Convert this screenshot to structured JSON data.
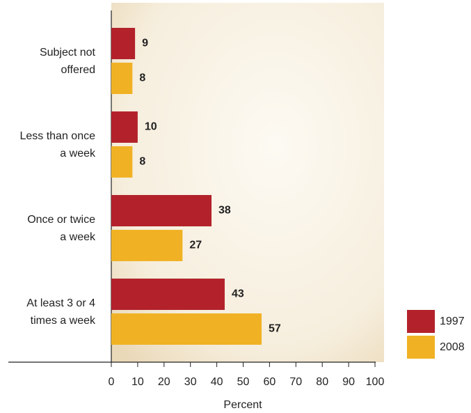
{
  "chart_data": {
    "type": "hbar",
    "categories": [
      "Subject not\noffered",
      "Less than once\na week",
      "Once or twice\na week",
      "At least 3 or 4\ntimes a week"
    ],
    "series": [
      {
        "name": "1997",
        "color": "#b3222b",
        "values": [
          9,
          10,
          38,
          43
        ]
      },
      {
        "name": "2008",
        "color": "#f0b224",
        "values": [
          8,
          8,
          27,
          57
        ]
      }
    ],
    "xlabel": "Percent",
    "xlim": [
      0,
      100
    ],
    "xticks": [
      0,
      10,
      20,
      30,
      40,
      50,
      60,
      70,
      80,
      90,
      100
    ],
    "legend": "bottom-right"
  }
}
